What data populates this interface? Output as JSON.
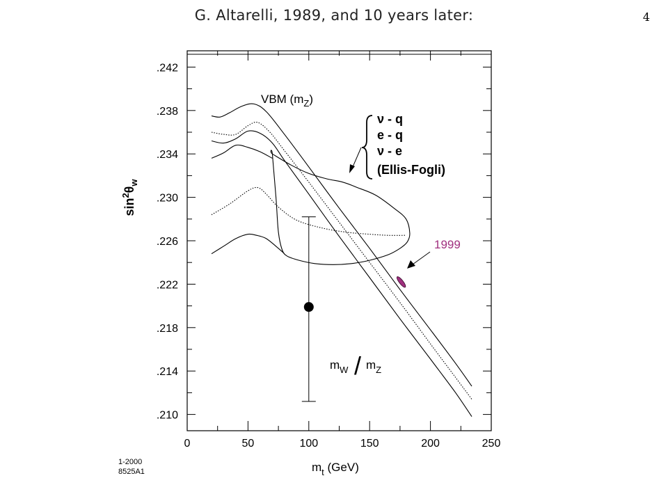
{
  "header": {
    "title": "G. Altarelli, 1989, and 10 years later:",
    "page_number": "4"
  },
  "figure_id": [
    "1-2000",
    "8525A1"
  ],
  "chart_data": {
    "type": "line",
    "xlabel": {
      "main": "m",
      "sub": "t",
      "rest": " (GeV)"
    },
    "ylabel": {
      "main": "sin",
      "sup": "2",
      "theta": "θ",
      "sub": "w"
    },
    "xlim": [
      0,
      250
    ],
    "ylim": [
      0.2085,
      0.2435
    ],
    "x_ticks": [
      0,
      50,
      100,
      150,
      200,
      250
    ],
    "x_tick_labels": [
      "0",
      "50",
      "100",
      "150",
      "200",
      "250"
    ],
    "y_ticks": [
      0.21,
      0.214,
      0.218,
      0.222,
      0.226,
      0.23,
      0.234,
      0.238,
      0.242
    ],
    "y_tick_labels": [
      ".210",
      ".214",
      ".218",
      ".222",
      ".226",
      ".230",
      ".234",
      ".238",
      ".242"
    ],
    "grid": false,
    "series": [
      {
        "name": "VBM (mZ)",
        "style": "solid",
        "x": [
          20,
          27,
          35,
          45,
          55,
          65,
          80,
          100,
          125,
          150,
          175,
          200,
          220,
          234
        ],
        "y": [
          0.2375,
          0.2374,
          0.2378,
          0.2384,
          0.2386,
          0.2379,
          0.2358,
          0.2328,
          0.229,
          0.2253,
          0.2215,
          0.2178,
          0.2148,
          0.2126
        ]
      },
      {
        "style": "dotted",
        "x": [
          20,
          30,
          40,
          50,
          58,
          68,
          80,
          100,
          125,
          150,
          175,
          200,
          220,
          234
        ],
        "y": [
          0.236,
          0.2358,
          0.2358,
          0.2366,
          0.2369,
          0.236,
          0.2343,
          0.2314,
          0.2277,
          0.224,
          0.2203,
          0.2165,
          0.2135,
          0.2114
        ]
      },
      {
        "style": "solid",
        "x": [
          20,
          30,
          40,
          50,
          60,
          70,
          80,
          100,
          125,
          150,
          175,
          200,
          220,
          234
        ],
        "y": [
          0.2352,
          0.235,
          0.2354,
          0.2361,
          0.2359,
          0.235,
          0.2334,
          0.2303,
          0.2264,
          0.2226,
          0.2188,
          0.2151,
          0.2121,
          0.2098
        ]
      },
      {
        "style": "solid",
        "x": [
          20,
          30,
          40,
          50,
          60,
          70
        ],
        "y": [
          0.2336,
          0.2341,
          0.2348,
          0.2346,
          0.2342,
          0.2336
        ]
      },
      {
        "style": "dotted",
        "x": [
          20,
          35,
          50,
          58,
          65,
          75,
          90,
          110,
          130,
          150,
          165,
          180
        ],
        "y": [
          0.2284,
          0.2294,
          0.2306,
          0.2309,
          0.2303,
          0.2291,
          0.2279,
          0.2272,
          0.2268,
          0.2266,
          0.2265,
          0.2265
        ]
      },
      {
        "style": "solid",
        "x": [
          20,
          30,
          40,
          50,
          57,
          65,
          75,
          80
        ],
        "y": [
          0.2248,
          0.2255,
          0.2262,
          0.2266,
          0.2265,
          0.2262,
          0.2253,
          0.2248
        ]
      }
    ],
    "contour_1989": {
      "x": [
        70,
        85,
        100,
        115,
        128,
        140,
        155,
        170,
        180,
        183,
        181,
        175,
        165,
        150,
        135,
        120,
        105,
        92,
        82,
        78,
        75,
        73,
        70
      ],
      "y": [
        0.234,
        0.233,
        0.2322,
        0.2317,
        0.2314,
        0.2309,
        0.2302,
        0.229,
        0.228,
        0.2267,
        0.2259,
        0.2253,
        0.2247,
        0.2242,
        0.2239,
        0.2238,
        0.2239,
        0.2242,
        0.2246,
        0.2252,
        0.2268,
        0.23,
        0.234
      ]
    },
    "ellipse_1999": {
      "x": 176,
      "y": 0.2222,
      "color": "#a0307f"
    },
    "point": {
      "x": 100,
      "y": 0.2199,
      "y_low": 0.2112,
      "y_high": 0.2282
    },
    "annotations": {
      "vbm": {
        "text": "VBM (m",
        "sub": "Z",
        "close": ")"
      },
      "neutral_current": [
        "ν - q",
        "e - q",
        "ν - e",
        "(Ellis-Fogli)"
      ],
      "label_1999": {
        "text": "1999",
        "color": "#a0307f"
      },
      "ratio": {
        "left": "m",
        "left_sub": "W",
        "slash": "/",
        "right": "m",
        "right_sub": "Z"
      }
    }
  }
}
